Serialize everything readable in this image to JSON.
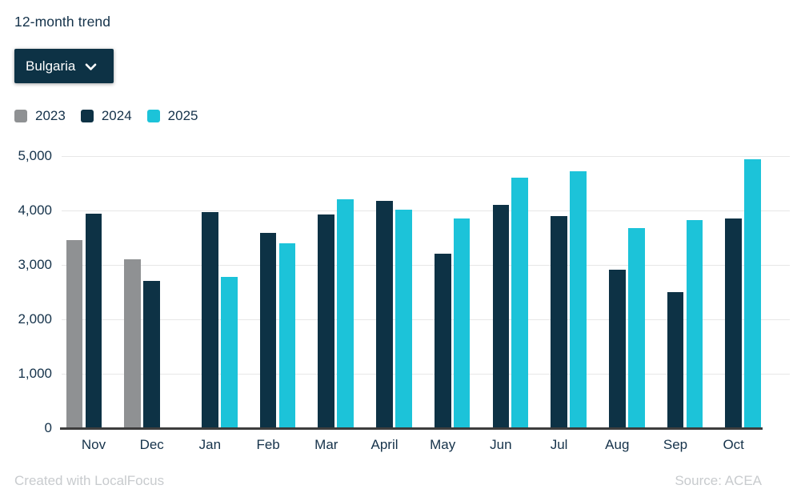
{
  "header": {
    "title": "12-month trend",
    "dropdown": {
      "value": "Bulgaria"
    }
  },
  "legend": [
    {
      "label": "2023",
      "color": "#8f9193"
    },
    {
      "label": "2024",
      "color": "#0d3245"
    },
    {
      "label": "2025",
      "color": "#1cc3d9"
    }
  ],
  "footer": {
    "credit": "Created with LocalFocus",
    "source": "Source: ACEA"
  },
  "colors": {
    "accent_dark_navy": "#0d3245",
    "accent_cyan": "#1cc3d9",
    "accent_gray": "#8f9193",
    "text": "#15324a",
    "gridline": "#e7e7e7",
    "axis_line": "#3d3d3d"
  },
  "chart_data": {
    "type": "bar",
    "title": "12-month trend",
    "categories": [
      "Nov",
      "Dec",
      "Jan",
      "Feb",
      "Mar",
      "April",
      "May",
      "Jun",
      "Jul",
      "Aug",
      "Sep",
      "Oct"
    ],
    "series": [
      {
        "name": "2023",
        "color": "#8f9193",
        "values": [
          3450,
          3110,
          null,
          null,
          null,
          null,
          null,
          null,
          null,
          null,
          null,
          null
        ]
      },
      {
        "name": "2024",
        "color": "#0d3245",
        "values": [
          3940,
          2700,
          3970,
          3590,
          3920,
          4180,
          3210,
          4100,
          3890,
          2910,
          2500,
          3850
        ]
      },
      {
        "name": "2025",
        "color": "#1cc3d9",
        "values": [
          null,
          null,
          2780,
          3400,
          4200,
          4010,
          3850,
          4600,
          4720,
          3680,
          3820,
          4940
        ]
      }
    ],
    "xlabel": "",
    "ylabel": "",
    "ylim": [
      0,
      5000
    ],
    "yticks": [
      0,
      1000,
      2000,
      3000,
      4000,
      5000
    ],
    "ytick_labels": [
      "0",
      "1,000",
      "2,000",
      "3,000",
      "4,000",
      "5,000"
    ],
    "grid": true,
    "legend_position": "top-left"
  }
}
